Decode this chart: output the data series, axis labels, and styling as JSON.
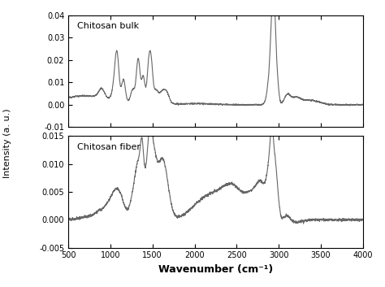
{
  "xlabel": "Wavenumber (cm⁻¹)",
  "ylabel": "Intensity (a. u.)",
  "line_color": "#666666",
  "line_width": 0.8,
  "background_color": "#ffffff",
  "xmin": 500,
  "xmax": 4000,
  "bulk_ylim": [
    -0.01,
    0.04
  ],
  "fiber_ylim": [
    -0.005,
    0.015
  ],
  "bulk_label": "Chitosan bulk",
  "fiber_label": "Chitosan fiber",
  "bulk_yticks": [
    -0.01,
    0.0,
    0.01,
    0.02,
    0.03,
    0.04
  ],
  "fiber_yticks": [
    -0.005,
    0.0,
    0.005,
    0.01,
    0.015
  ],
  "xticks": [
    500,
    1000,
    1500,
    2000,
    2500,
    3000,
    3500,
    4000
  ]
}
